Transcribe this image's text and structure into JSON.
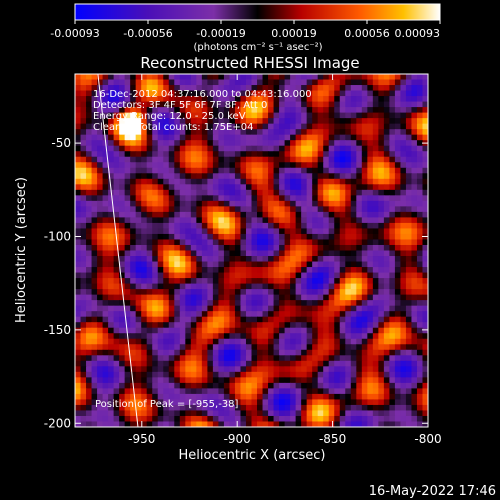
{
  "colorbar": {
    "ticks": [
      "-0.00093",
      "-0.00056",
      "-0.00019",
      "0.00019",
      "0.00056",
      "0.00093"
    ],
    "unit_label": "(photons cm⁻² s⁻¹ asec⁻²)"
  },
  "chart_data": {
    "type": "heatmap",
    "title": "Reconstructed RHESSI Image",
    "xlabel": "Heliocentric X (arcsec)",
    "ylabel": "Heliocentric Y (arcsec)",
    "xlim": [
      -985,
      -800
    ],
    "ylim": [
      -202,
      -13
    ],
    "x_ticks": [
      -950,
      -900,
      -850,
      -800
    ],
    "y_ticks": [
      -50,
      -100,
      -150,
      -200
    ],
    "colorbar_range": [
      -0.00093,
      0.00093
    ],
    "grid": false,
    "limb_line": [
      [
        -973,
        -13
      ],
      [
        -952,
        -202
      ]
    ],
    "peak": [
      -955,
      -38
    ],
    "annotations": [
      "16-Dec-2012 04:37:16.000 to 04:43:16.000",
      "Detectors: 3F 4F 5F 6F 7F 8F, Att 0",
      "Energy Range: 12.0 - 25.0 keV",
      "Clean     Total counts: 1.75E+04",
      "Position of Peak = [-955,-38]"
    ]
  },
  "footer": {
    "timestamp": "16-May-2022 17:46"
  }
}
